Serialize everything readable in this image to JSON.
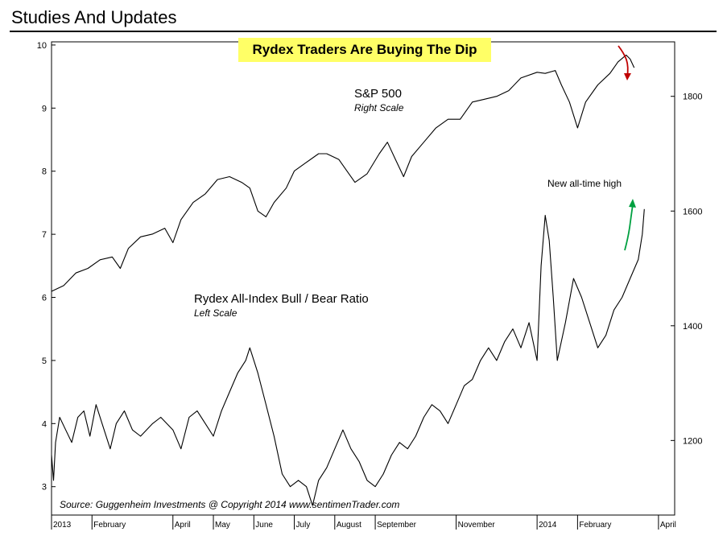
{
  "header": {
    "title": "Studies And Updates"
  },
  "chart_data": {
    "type": "line",
    "title": "Rydex Traders Are Buying The Dip",
    "x_labels": [
      "2013",
      "February",
      "April",
      "May",
      "June",
      "July",
      "August",
      "September",
      "November",
      "2014",
      "February",
      "April"
    ],
    "x_label_positions": [
      0,
      1.0,
      3.0,
      4.0,
      5.0,
      6.0,
      7.0,
      8.0,
      10.0,
      12.0,
      13.0,
      15.0
    ],
    "x_range": [
      0,
      15.4
    ],
    "left_axis": {
      "ticks": [
        3,
        4,
        5,
        6,
        7,
        8,
        9,
        10
      ],
      "range": [
        2.55,
        10.05
      ]
    },
    "right_axis": {
      "ticks": [
        1200,
        1400,
        1600,
        1800
      ],
      "range": [
        1070,
        1895
      ]
    },
    "series": [
      {
        "name": "S&P 500",
        "subtitle": "Right Scale",
        "axis": "right",
        "points": [
          [
            0.0,
            1460
          ],
          [
            0.3,
            1470
          ],
          [
            0.6,
            1492
          ],
          [
            0.9,
            1500
          ],
          [
            1.2,
            1515
          ],
          [
            1.5,
            1520
          ],
          [
            1.7,
            1500
          ],
          [
            1.9,
            1535
          ],
          [
            2.2,
            1555
          ],
          [
            2.5,
            1560
          ],
          [
            2.8,
            1570
          ],
          [
            3.0,
            1545
          ],
          [
            3.2,
            1585
          ],
          [
            3.5,
            1615
          ],
          [
            3.8,
            1630
          ],
          [
            4.1,
            1655
          ],
          [
            4.4,
            1660
          ],
          [
            4.7,
            1650
          ],
          [
            4.9,
            1640
          ],
          [
            5.1,
            1600
          ],
          [
            5.3,
            1590
          ],
          [
            5.5,
            1615
          ],
          [
            5.8,
            1640
          ],
          [
            6.0,
            1670
          ],
          [
            6.3,
            1685
          ],
          [
            6.6,
            1700
          ],
          [
            6.8,
            1700
          ],
          [
            7.1,
            1690
          ],
          [
            7.3,
            1670
          ],
          [
            7.5,
            1650
          ],
          [
            7.8,
            1665
          ],
          [
            8.1,
            1700
          ],
          [
            8.3,
            1720
          ],
          [
            8.5,
            1690
          ],
          [
            8.7,
            1660
          ],
          [
            8.9,
            1695
          ],
          [
            9.2,
            1720
          ],
          [
            9.5,
            1745
          ],
          [
            9.8,
            1760
          ],
          [
            10.1,
            1760
          ],
          [
            10.4,
            1790
          ],
          [
            10.7,
            1795
          ],
          [
            11.0,
            1800
          ],
          [
            11.3,
            1810
          ],
          [
            11.6,
            1832
          ],
          [
            12.0,
            1842
          ],
          [
            12.2,
            1840
          ],
          [
            12.45,
            1845
          ],
          [
            12.6,
            1820
          ],
          [
            12.8,
            1790
          ],
          [
            13.0,
            1745
          ],
          [
            13.2,
            1790
          ],
          [
            13.5,
            1820
          ],
          [
            13.8,
            1840
          ],
          [
            14.0,
            1860
          ],
          [
            14.2,
            1872
          ],
          [
            14.3,
            1865
          ],
          [
            14.4,
            1850
          ]
        ]
      },
      {
        "name": "Rydex All-Index Bull / Bear Ratio",
        "subtitle": "Left Scale",
        "axis": "left",
        "points": [
          [
            0.0,
            3.5
          ],
          [
            0.05,
            3.1
          ],
          [
            0.1,
            3.7
          ],
          [
            0.2,
            4.1
          ],
          [
            0.35,
            3.9
          ],
          [
            0.5,
            3.7
          ],
          [
            0.65,
            4.1
          ],
          [
            0.8,
            4.2
          ],
          [
            0.95,
            3.8
          ],
          [
            1.1,
            4.3
          ],
          [
            1.25,
            4.0
          ],
          [
            1.45,
            3.6
          ],
          [
            1.6,
            4.0
          ],
          [
            1.8,
            4.2
          ],
          [
            2.0,
            3.9
          ],
          [
            2.2,
            3.8
          ],
          [
            2.5,
            4.0
          ],
          [
            2.7,
            4.1
          ],
          [
            3.0,
            3.9
          ],
          [
            3.2,
            3.6
          ],
          [
            3.4,
            4.1
          ],
          [
            3.6,
            4.2
          ],
          [
            3.8,
            4.0
          ],
          [
            4.0,
            3.8
          ],
          [
            4.2,
            4.2
          ],
          [
            4.4,
            4.5
          ],
          [
            4.6,
            4.8
          ],
          [
            4.8,
            5.0
          ],
          [
            4.9,
            5.2
          ],
          [
            5.1,
            4.8
          ],
          [
            5.3,
            4.3
          ],
          [
            5.5,
            3.8
          ],
          [
            5.7,
            3.2
          ],
          [
            5.9,
            3.0
          ],
          [
            6.1,
            3.1
          ],
          [
            6.3,
            3.0
          ],
          [
            6.45,
            2.7
          ],
          [
            6.6,
            3.1
          ],
          [
            6.8,
            3.3
          ],
          [
            7.0,
            3.6
          ],
          [
            7.2,
            3.9
          ],
          [
            7.4,
            3.6
          ],
          [
            7.6,
            3.4
          ],
          [
            7.8,
            3.1
          ],
          [
            8.0,
            3.0
          ],
          [
            8.2,
            3.2
          ],
          [
            8.4,
            3.5
          ],
          [
            8.6,
            3.7
          ],
          [
            8.8,
            3.6
          ],
          [
            9.0,
            3.8
          ],
          [
            9.2,
            4.1
          ],
          [
            9.4,
            4.3
          ],
          [
            9.6,
            4.2
          ],
          [
            9.8,
            4.0
          ],
          [
            10.0,
            4.3
          ],
          [
            10.2,
            4.6
          ],
          [
            10.4,
            4.7
          ],
          [
            10.6,
            5.0
          ],
          [
            10.8,
            5.2
          ],
          [
            11.0,
            5.0
          ],
          [
            11.2,
            5.3
          ],
          [
            11.4,
            5.5
          ],
          [
            11.6,
            5.2
          ],
          [
            11.8,
            5.6
          ],
          [
            12.0,
            5.0
          ],
          [
            12.1,
            6.5
          ],
          [
            12.2,
            7.3
          ],
          [
            12.3,
            6.9
          ],
          [
            12.4,
            6.0
          ],
          [
            12.5,
            5.0
          ],
          [
            12.7,
            5.6
          ],
          [
            12.9,
            6.3
          ],
          [
            13.1,
            6.0
          ],
          [
            13.3,
            5.6
          ],
          [
            13.5,
            5.2
          ],
          [
            13.7,
            5.4
          ],
          [
            13.9,
            5.8
          ],
          [
            14.1,
            6.0
          ],
          [
            14.3,
            6.3
          ],
          [
            14.5,
            6.6
          ],
          [
            14.6,
            7.0
          ],
          [
            14.65,
            7.4
          ]
        ]
      }
    ],
    "annotations": {
      "new_high": "New all-time high"
    },
    "colors": {
      "down_arrow": "#c00000",
      "up_arrow": "#00a040",
      "title_bg": "#ffff66"
    },
    "source": "Source:  Guggenheim Investments   @ Copyright 2014   www.sentimenTrader.com"
  }
}
